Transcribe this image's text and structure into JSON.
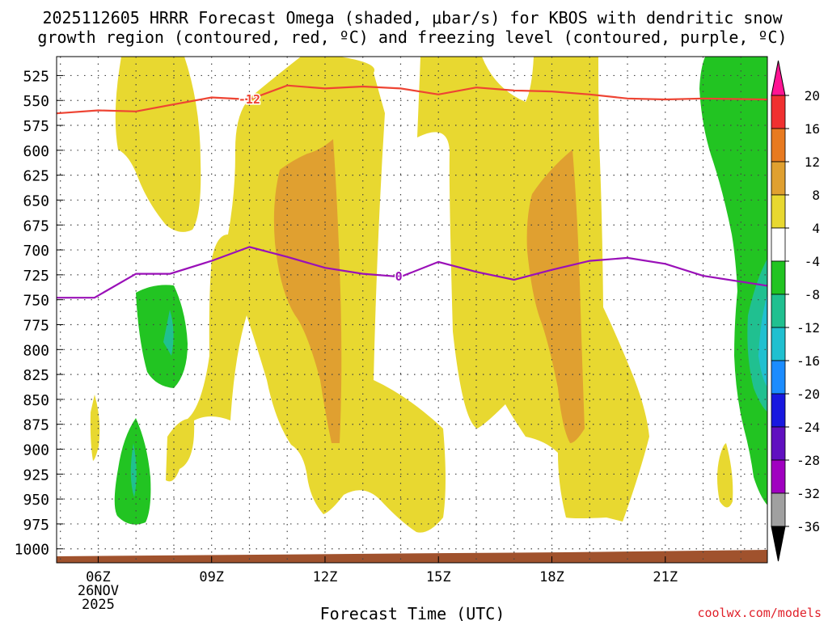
{
  "chart_data": {
    "type": "contour",
    "title_line1": "2025112605 HRRR Forecast Omega (shaded, μbar/s) for KBOS with dendritic snow",
    "title_line2": "growth region (contoured, red, ºC) and freezing level (contoured, purple, ºC)",
    "xlabel": "Forecast Time (UTC)",
    "credit": "coolwx.com/models",
    "x_range": [
      4.9,
      23.7
    ],
    "x_ticks": [
      {
        "hour": 6,
        "label": "06Z",
        "sub1": "26NOV",
        "sub2": "2025"
      },
      {
        "hour": 9,
        "label": "09Z"
      },
      {
        "hour": 12,
        "label": "12Z"
      },
      {
        "hour": 15,
        "label": "15Z"
      },
      {
        "hour": 18,
        "label": "18Z"
      },
      {
        "hour": 21,
        "label": "21Z"
      }
    ],
    "y_levels_hpa": [
      525,
      550,
      575,
      600,
      625,
      650,
      675,
      700,
      725,
      750,
      775,
      800,
      825,
      850,
      875,
      900,
      925,
      950,
      975,
      1000
    ],
    "colorbar": {
      "labels": [
        "20",
        "16",
        "12",
        "8",
        "4",
        "-4",
        "-8",
        "-12",
        "-16",
        "-20",
        "-24",
        "-28",
        "-32",
        "-36"
      ],
      "colors": [
        "#ff1493",
        "#f03030",
        "#e87a20",
        "#e0a030",
        "#e8d830",
        "#ffffff",
        "#22c422",
        "#20c090",
        "#20c0d0",
        "#1b8cff",
        "#1818e0",
        "#6010c0",
        "#a000c0",
        "#a0a0a0",
        "#000000"
      ]
    },
    "series": [
      {
        "name": "-12 °C isotherm (dendritic growth)",
        "color": "#ee4433",
        "label": "-12",
        "label_hour": 10.0,
        "points": [
          [
            4.9,
            563
          ],
          [
            6,
            560
          ],
          [
            7,
            561
          ],
          [
            8,
            554
          ],
          [
            9,
            547
          ],
          [
            10,
            549
          ],
          [
            11,
            535
          ],
          [
            12,
            538
          ],
          [
            13,
            536
          ],
          [
            14,
            538
          ],
          [
            15,
            544
          ],
          [
            16,
            537
          ],
          [
            17,
            540
          ],
          [
            18,
            541
          ],
          [
            19,
            544
          ],
          [
            20,
            548
          ],
          [
            21,
            549
          ],
          [
            22,
            548
          ],
          [
            23.7,
            549
          ]
        ]
      },
      {
        "name": "0 °C freezing level",
        "color": "#9a10b8",
        "label": "0",
        "label_hour": 13.95,
        "points": [
          [
            4.9,
            748
          ],
          [
            5.9,
            748
          ],
          [
            7,
            724
          ],
          [
            7.9,
            724
          ],
          [
            9,
            711
          ],
          [
            10,
            697
          ],
          [
            11,
            707
          ],
          [
            12,
            718
          ],
          [
            13,
            724
          ],
          [
            14,
            727
          ],
          [
            15,
            712
          ],
          [
            16,
            722
          ],
          [
            17,
            730
          ],
          [
            18,
            720
          ],
          [
            19,
            711
          ],
          [
            20,
            708
          ],
          [
            21,
            714
          ],
          [
            22,
            726
          ],
          [
            23.7,
            736
          ]
        ]
      }
    ]
  }
}
